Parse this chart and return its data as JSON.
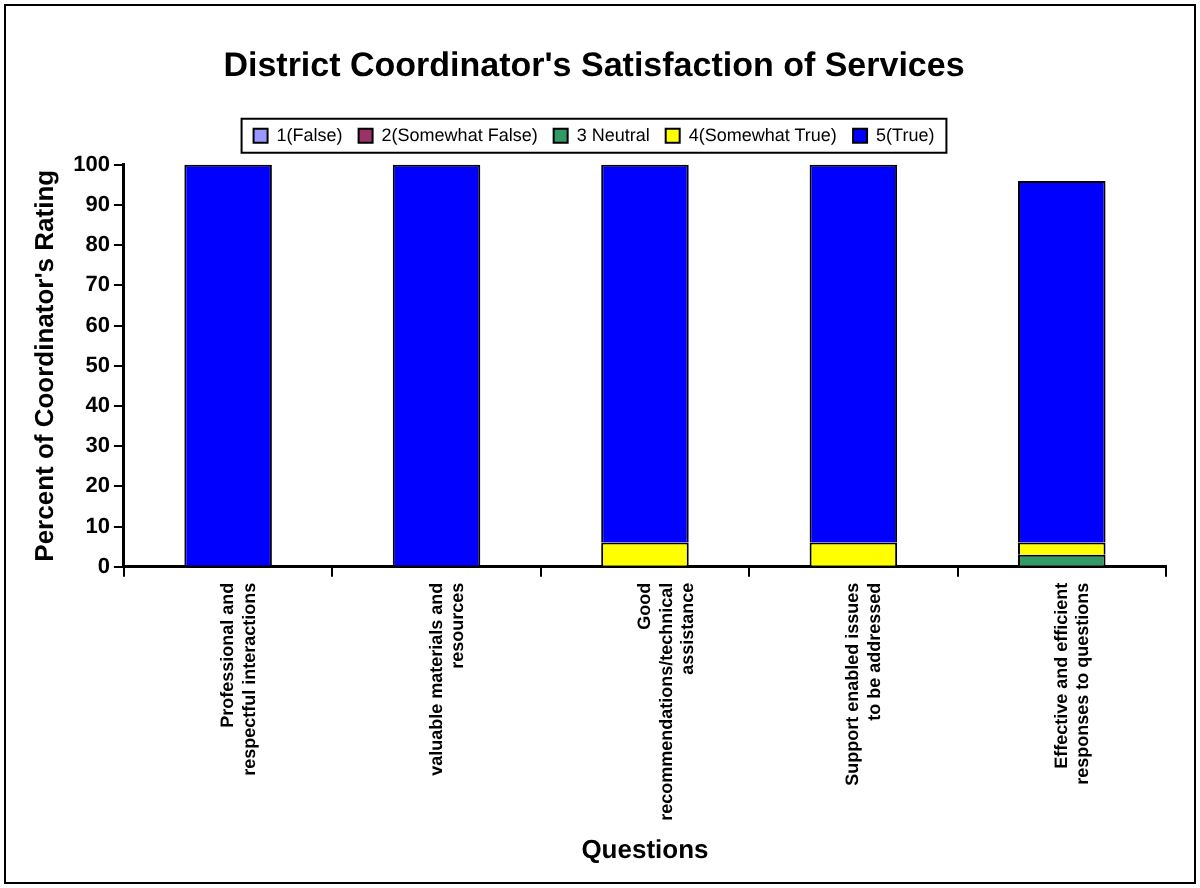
{
  "chart_data": {
    "type": "bar",
    "title": "District Coordinator's Satisfaction of Services",
    "xlabel": "Questions",
    "ylabel": "Percent of Coordinator's Rating",
    "categories": [
      "Professional and respectful interactions",
      "valuable materials and resources",
      "Good recommendations/technical assistance",
      "Support enabled issues to be addressed",
      "Effective and efficient responses to questions"
    ],
    "stacked": true,
    "legend": "top",
    "grid": false,
    "ylim": [
      0,
      100
    ],
    "yticks": [
      0,
      10,
      20,
      30,
      40,
      50,
      60,
      70,
      80,
      90,
      100
    ],
    "series": [
      {
        "name": "1(False)",
        "color": "#9999ff",
        "values": [
          0,
          0,
          0,
          0,
          0
        ]
      },
      {
        "name": "2(Somewhat False)",
        "color": "#993366",
        "values": [
          0,
          0,
          0,
          0,
          0
        ]
      },
      {
        "name": "3 Neutral",
        "color": "#339966",
        "values": [
          0,
          0,
          0,
          0,
          3
        ]
      },
      {
        "name": "4(Somewhat True)",
        "color": "#ffff00",
        "values": [
          0,
          0,
          6,
          6,
          3
        ]
      },
      {
        "name": "5(True)",
        "color": "#0000ff",
        "values": [
          100,
          100,
          94,
          94,
          90
        ]
      }
    ]
  }
}
